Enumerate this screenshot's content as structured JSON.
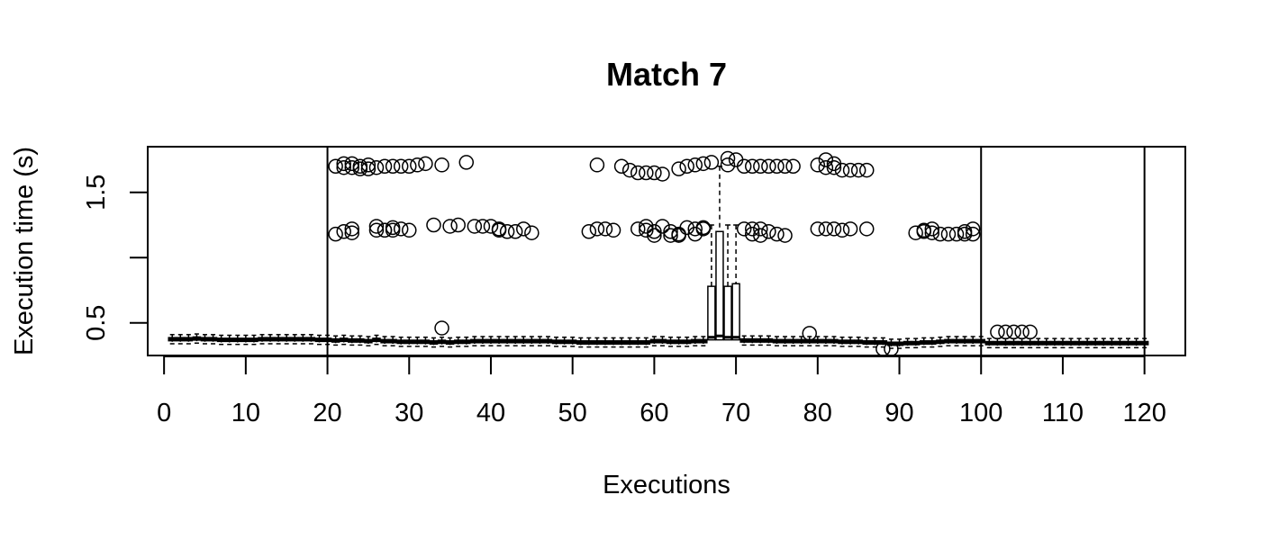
{
  "chart_data": {
    "type": "boxplot",
    "title": "Match 7",
    "xlabel": "Executions",
    "ylabel": "Execution time (s)",
    "xlim": [
      -2,
      125
    ],
    "ylim": [
      0.25,
      1.85
    ],
    "x_ticks": [
      0,
      10,
      20,
      30,
      40,
      50,
      60,
      70,
      80,
      90,
      100,
      110,
      120
    ],
    "x_tick_labels": [
      "0",
      "10",
      "20",
      "30",
      "40",
      "50",
      "60",
      "70",
      "80",
      "90",
      "100",
      "110",
      "120"
    ],
    "y_ticks": [
      0.5,
      1.0,
      1.5
    ],
    "y_tick_labels": [
      "0.5",
      "",
      "1.5"
    ],
    "vertical_lines": [
      20,
      100,
      120
    ],
    "grid": false,
    "legend": "none",
    "colors": {
      "stroke": "#000000",
      "fill": "#ffffff",
      "background": "#ffffff"
    },
    "box_medians": [
      0.375,
      0.375,
      0.375,
      0.38,
      0.375,
      0.375,
      0.37,
      0.37,
      0.37,
      0.37,
      0.37,
      0.375,
      0.375,
      0.375,
      0.375,
      0.375,
      0.375,
      0.375,
      0.37,
      0.37,
      0.365,
      0.37,
      0.365,
      0.365,
      0.36,
      0.37,
      0.36,
      0.36,
      0.355,
      0.355,
      0.355,
      0.355,
      0.35,
      0.355,
      0.35,
      0.355,
      0.355,
      0.36,
      0.36,
      0.36,
      0.36,
      0.36,
      0.36,
      0.36,
      0.36,
      0.36,
      0.36,
      0.355,
      0.355,
      0.355,
      0.35,
      0.35,
      0.35,
      0.35,
      0.35,
      0.35,
      0.35,
      0.35,
      0.35,
      0.36,
      0.36,
      0.355,
      0.355,
      0.355,
      0.36,
      0.36,
      0.365,
      0.36,
      0.36,
      0.365,
      0.365,
      0.365,
      0.365,
      0.365,
      0.36,
      0.36,
      0.36,
      0.36,
      0.36,
      0.36,
      0.36,
      0.36,
      0.355,
      0.355,
      0.355,
      0.35,
      0.35,
      0.35,
      0.34,
      0.34,
      0.345,
      0.345,
      0.35,
      0.35,
      0.355,
      0.36,
      0.36,
      0.36,
      0.36,
      0.36,
      0.345,
      0.345,
      0.345,
      0.345,
      0.345,
      0.345,
      0.345,
      0.345,
      0.345,
      0.345,
      0.345,
      0.345,
      0.345,
      0.345,
      0.345,
      0.345,
      0.345,
      0.345,
      0.345,
      0.345
    ],
    "wide_boxes": [
      {
        "x": 67,
        "q1": 0.37,
        "median": 0.39,
        "q3": 0.78,
        "whisker_high": 1.25
      },
      {
        "x": 68,
        "q1": 0.37,
        "median": 0.4,
        "q3": 1.2,
        "whisker_high": 1.7
      },
      {
        "x": 69,
        "q1": 0.37,
        "median": 0.39,
        "q3": 0.78,
        "whisker_high": 1.25
      },
      {
        "x": 70,
        "q1": 0.37,
        "median": 0.39,
        "q3": 0.8,
        "whisker_high": 1.25
      }
    ],
    "outliers": [
      [
        21,
        1.7
      ],
      [
        22,
        1.72
      ],
      [
        23,
        1.69
      ],
      [
        24,
        1.7
      ],
      [
        25,
        1.71
      ],
      [
        26,
        1.69
      ],
      [
        27,
        1.7
      ],
      [
        28,
        1.7
      ],
      [
        29,
        1.7
      ],
      [
        30,
        1.7
      ],
      [
        31,
        1.71
      ],
      [
        32,
        1.72
      ],
      [
        34,
        1.71
      ],
      [
        37,
        1.73
      ],
      [
        22,
        1.69
      ],
      [
        24,
        1.68
      ],
      [
        25,
        1.68
      ],
      [
        23,
        1.72
      ],
      [
        53,
        1.71
      ],
      [
        56,
        1.7
      ],
      [
        57,
        1.67
      ],
      [
        58,
        1.65
      ],
      [
        59,
        1.65
      ],
      [
        60,
        1.65
      ],
      [
        61,
        1.64
      ],
      [
        63,
        1.68
      ],
      [
        64,
        1.7
      ],
      [
        65,
        1.71
      ],
      [
        66,
        1.72
      ],
      [
        67,
        1.73
      ],
      [
        69,
        1.76
      ],
      [
        70,
        1.75
      ],
      [
        71,
        1.7
      ],
      [
        72,
        1.7
      ],
      [
        73,
        1.7
      ],
      [
        74,
        1.7
      ],
      [
        75,
        1.7
      ],
      [
        76,
        1.7
      ],
      [
        77,
        1.7
      ],
      [
        69,
        1.71
      ],
      [
        80,
        1.71
      ],
      [
        81,
        1.75
      ],
      [
        81,
        1.69
      ],
      [
        82,
        1.72
      ],
      [
        83,
        1.67
      ],
      [
        84,
        1.67
      ],
      [
        85,
        1.67
      ],
      [
        86,
        1.67
      ],
      [
        82,
        1.69
      ],
      [
        21,
        1.18
      ],
      [
        22,
        1.2
      ],
      [
        23,
        1.22
      ],
      [
        23,
        1.19
      ],
      [
        26,
        1.24
      ],
      [
        26,
        1.21
      ],
      [
        27,
        1.21
      ],
      [
        28,
        1.23
      ],
      [
        28,
        1.21
      ],
      [
        29,
        1.22
      ],
      [
        30,
        1.21
      ],
      [
        33,
        1.25
      ],
      [
        35,
        1.24
      ],
      [
        36,
        1.25
      ],
      [
        38,
        1.24
      ],
      [
        39,
        1.24
      ],
      [
        40,
        1.24
      ],
      [
        41,
        1.22
      ],
      [
        42,
        1.2
      ],
      [
        43,
        1.2
      ],
      [
        44,
        1.22
      ],
      [
        45,
        1.19
      ],
      [
        27,
        1.21
      ],
      [
        41,
        1.21
      ],
      [
        52,
        1.2
      ],
      [
        53,
        1.22
      ],
      [
        54,
        1.22
      ],
      [
        55,
        1.21
      ],
      [
        58,
        1.22
      ],
      [
        59,
        1.24
      ],
      [
        59,
        1.21
      ],
      [
        60,
        1.2
      ],
      [
        61,
        1.24
      ],
      [
        62,
        1.2
      ],
      [
        63,
        1.18
      ],
      [
        64,
        1.23
      ],
      [
        65,
        1.22
      ],
      [
        66,
        1.23
      ],
      [
        60,
        1.17
      ],
      [
        62,
        1.17
      ],
      [
        63,
        1.17
      ],
      [
        65,
        1.18
      ],
      [
        66,
        1.22
      ],
      [
        71,
        1.22
      ],
      [
        72,
        1.22
      ],
      [
        73,
        1.22
      ],
      [
        74,
        1.2
      ],
      [
        75,
        1.18
      ],
      [
        72,
        1.18
      ],
      [
        73,
        1.17
      ],
      [
        76,
        1.17
      ],
      [
        80,
        1.22
      ],
      [
        81,
        1.22
      ],
      [
        82,
        1.22
      ],
      [
        83,
        1.21
      ],
      [
        84,
        1.22
      ],
      [
        86,
        1.22
      ],
      [
        92,
        1.19
      ],
      [
        93,
        1.21
      ],
      [
        94,
        1.22
      ],
      [
        95,
        1.18
      ],
      [
        96,
        1.18
      ],
      [
        97,
        1.18
      ],
      [
        98,
        1.2
      ],
      [
        99,
        1.22
      ],
      [
        98,
        1.18
      ],
      [
        99,
        1.18
      ],
      [
        93,
        1.2
      ],
      [
        94,
        1.19
      ],
      [
        34,
        0.46
      ],
      [
        79,
        0.42
      ],
      [
        88,
        0.3
      ],
      [
        89,
        0.3
      ],
      [
        102,
        0.43
      ],
      [
        103,
        0.43
      ],
      [
        104,
        0.43
      ],
      [
        105,
        0.43
      ],
      [
        106,
        0.43
      ]
    ]
  }
}
